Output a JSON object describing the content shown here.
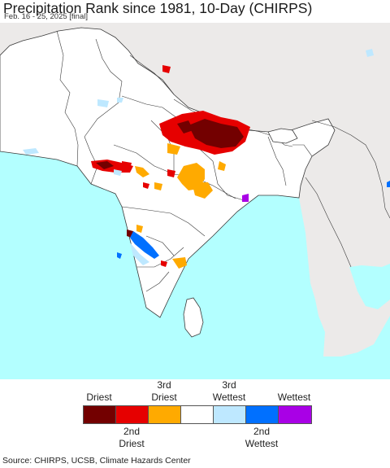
{
  "title": "Precipitation Rank since 1981, 10-Day (CHIRPS)",
  "subtitle": "Feb. 16 - 25, 2025 [final]",
  "source": "Source: CHIRPS, UCSB, Climate Hazards Center",
  "colors": {
    "ocean": "#b3ffff",
    "land_region": "#ffffff",
    "land_outside": "#eceae9",
    "border": "#3a3a3a"
  },
  "legend": {
    "top_labels": [
      {
        "lines": [
          "Driest"
        ],
        "slot": 0
      },
      {
        "lines": [
          "3rd",
          "Driest"
        ],
        "slot": 2
      },
      {
        "lines": [
          "3rd",
          "Wettest"
        ],
        "slot": 4
      },
      {
        "lines": [
          "Wettest"
        ],
        "slot": 6
      }
    ],
    "bottom_labels": [
      {
        "lines": [
          "2nd",
          "Driest"
        ],
        "slot": 1
      },
      {
        "lines": [
          "2nd",
          "Wettest"
        ],
        "slot": 5
      }
    ],
    "swatches": [
      {
        "name": "driest",
        "color": "#730000"
      },
      {
        "name": "2nd-driest",
        "color": "#e60000"
      },
      {
        "name": "3rd-driest",
        "color": "#ffaa00"
      },
      {
        "name": "normal",
        "color": "#ffffff"
      },
      {
        "name": "3rd-wettest",
        "color": "#bee8ff"
      },
      {
        "name": "2nd-wettest",
        "color": "#0070ff"
      },
      {
        "name": "wettest",
        "color": "#a900e6"
      }
    ]
  }
}
